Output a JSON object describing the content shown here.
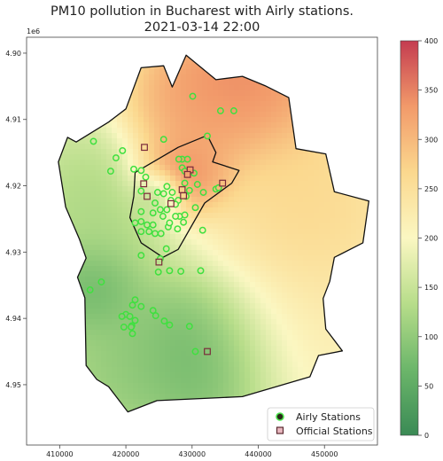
{
  "chart_data": {
    "type": "heatmap",
    "title_line1": "PM10 pollution in Bucharest with Airly stations.",
    "title_line2": "2021-03-14 22:00",
    "x_axis": {
      "range": [
        405000,
        458000
      ],
      "ticks": [
        410000,
        420000,
        430000,
        440000,
        450000
      ],
      "tick_labels": [
        "410000",
        "420000",
        "430000",
        "440000",
        "450000"
      ]
    },
    "y_axis": {
      "range": [
        4.8976,
        4.9591
      ],
      "scale_label": "1e6",
      "inverted": true,
      "ticks": [
        4.9,
        4.91,
        4.92,
        4.93,
        4.94,
        4.95
      ],
      "tick_labels": [
        "4.90",
        "4.91",
        "4.92",
        "4.93",
        "4.94",
        "4.95"
      ]
    },
    "colorbar": {
      "range": [
        0,
        400
      ],
      "ticks": [
        0,
        50,
        100,
        150,
        200,
        250,
        300,
        350,
        400
      ],
      "tick_labels": [
        "0",
        "50",
        "100",
        "150",
        "200",
        "250",
        "300",
        "350",
        "400"
      ],
      "colormap": "RdYlGn_r",
      "stops": [
        "#3a8a55",
        "#6cb66a",
        "#b7dd8a",
        "#fbf7c2",
        "#fbd88e",
        "#f29a6a",
        "#c43c50"
      ]
    },
    "legend": {
      "position": "lower-right",
      "items": [
        {
          "label": "Airly Stations",
          "marker": "circle",
          "color": "#2a2a1a"
        },
        {
          "label": "Official Stations",
          "marker": "square",
          "color": "#e8b8c0"
        }
      ]
    },
    "grid": false,
    "city_boundary": [
      [
        412500,
        4.9134
      ],
      [
        417400,
        4.9104
      ],
      [
        420000,
        4.9084
      ],
      [
        422300,
        4.9022
      ],
      [
        425700,
        4.9019
      ],
      [
        427000,
        4.9051
      ],
      [
        429100,
        4.9003
      ],
      [
        433600,
        4.904
      ],
      [
        437600,
        4.9035
      ],
      [
        441000,
        4.9049
      ],
      [
        444600,
        4.9067
      ],
      [
        445700,
        4.9144
      ],
      [
        450200,
        4.9152
      ],
      [
        451500,
        4.9209
      ],
      [
        456700,
        4.9223
      ],
      [
        455800,
        4.9286
      ],
      [
        451500,
        4.9308
      ],
      [
        450800,
        4.9344
      ],
      [
        449800,
        4.937
      ],
      [
        450200,
        4.9416
      ],
      [
        452700,
        4.9449
      ],
      [
        449100,
        4.9456
      ],
      [
        447800,
        4.9488
      ],
      [
        437600,
        4.9518
      ],
      [
        424700,
        4.9524
      ],
      [
        420300,
        4.9541
      ],
      [
        417400,
        4.9503
      ],
      [
        415600,
        4.9492
      ],
      [
        414000,
        4.9471
      ],
      [
        413800,
        4.9369
      ],
      [
        412700,
        4.9338
      ],
      [
        414000,
        4.9309
      ],
      [
        413000,
        4.9281
      ],
      [
        410900,
        4.9232
      ],
      [
        409800,
        4.9164
      ],
      [
        411200,
        4.9127
      ]
    ],
    "inner_ring": [
      [
        421400,
        4.918
      ],
      [
        427900,
        4.9142
      ],
      [
        432300,
        4.9124
      ],
      [
        433600,
        4.915
      ],
      [
        433100,
        4.9164
      ],
      [
        437100,
        4.9177
      ],
      [
        436000,
        4.9196
      ],
      [
        431900,
        4.9226
      ],
      [
        427900,
        4.9296
      ],
      [
        425600,
        4.9308
      ],
      [
        422300,
        4.9286
      ],
      [
        420600,
        4.9248
      ],
      [
        421200,
        4.9216
      ]
    ],
    "hotspots": [
      {
        "x": 428500,
        "y": 4.9185,
        "value": 400,
        "sigma_x": 4200,
        "sigma_y": 0.0035
      },
      {
        "x": 437000,
        "y": 4.905,
        "value": 400,
        "sigma_x": 9000,
        "sigma_y": 0.0065
      },
      {
        "x": 431000,
        "y": 4.91,
        "value": 330,
        "sigma_x": 5500,
        "sigma_y": 0.0045
      },
      {
        "x": 447000,
        "y": 4.923,
        "value": 290,
        "sigma_x": 9000,
        "sigma_y": 0.009
      },
      {
        "x": 445000,
        "y": 4.942,
        "value": 245,
        "sigma_x": 7000,
        "sigma_y": 0.008
      },
      {
        "x": 432500,
        "y": 4.9455,
        "value": 30,
        "sigma_x": 7500,
        "sigma_y": 0.007
      },
      {
        "x": 425000,
        "y": 4.9212,
        "value": 55,
        "sigma_x": 2200,
        "sigma_y": 0.002
      },
      {
        "x": 415000,
        "y": 4.9355,
        "value": 40,
        "sigma_x": 4000,
        "sigma_y": 0.004
      },
      {
        "x": 416000,
        "y": 4.924,
        "value": 110,
        "sigma_x": 6000,
        "sigma_y": 0.007
      },
      {
        "x": 420000,
        "y": 4.947,
        "value": 90,
        "sigma_x": 7000,
        "sigma_y": 0.006
      }
    ],
    "airly_stations": [
      [
        430100,
        4.9065
      ],
      [
        434300,
        4.9087
      ],
      [
        436300,
        4.9087
      ],
      [
        428500,
        4.9173
      ],
      [
        428900,
        4.9178
      ],
      [
        425700,
        4.9212
      ],
      [
        426800,
        4.9222
      ],
      [
        427900,
        4.9222
      ],
      [
        425200,
        4.9236
      ],
      [
        425600,
        4.9246
      ],
      [
        424400,
        4.9226
      ],
      [
        428100,
        4.9246
      ],
      [
        426400,
        4.9262
      ],
      [
        415100,
        4.9133
      ],
      [
        418500,
        4.9158
      ],
      [
        417700,
        4.9178
      ],
      [
        419500,
        4.9147
      ],
      [
        421200,
        4.9175
      ],
      [
        422300,
        4.9177
      ],
      [
        423000,
        4.9187
      ],
      [
        425700,
        4.913
      ],
      [
        428500,
        4.916
      ],
      [
        429300,
        4.916
      ],
      [
        432300,
        4.9125
      ],
      [
        428000,
        4.916
      ],
      [
        430300,
        4.9181
      ],
      [
        428900,
        4.9196
      ],
      [
        430800,
        4.9198
      ],
      [
        429600,
        4.9207
      ],
      [
        431700,
        4.921
      ],
      [
        433600,
        4.9205
      ],
      [
        434000,
        4.9203
      ],
      [
        424800,
        4.921
      ],
      [
        422300,
        4.9208
      ],
      [
        426200,
        4.9201
      ],
      [
        427000,
        4.921
      ],
      [
        429100,
        4.9216
      ],
      [
        427500,
        4.9228
      ],
      [
        426200,
        4.9236
      ],
      [
        430500,
        4.9233
      ],
      [
        427500,
        4.9246
      ],
      [
        428900,
        4.9244
      ],
      [
        422300,
        4.9239
      ],
      [
        424100,
        4.9241
      ],
      [
        421400,
        4.9256
      ],
      [
        422300,
        4.9254
      ],
      [
        423200,
        4.9259
      ],
      [
        424100,
        4.9259
      ],
      [
        426600,
        4.9256
      ],
      [
        428700,
        4.9255
      ],
      [
        427800,
        4.9265
      ],
      [
        431600,
        4.9267
      ],
      [
        422300,
        4.9269
      ],
      [
        423500,
        4.9269
      ],
      [
        424400,
        4.9272
      ],
      [
        425300,
        4.9272
      ],
      [
        426100,
        4.9295
      ],
      [
        425200,
        4.931
      ],
      [
        422300,
        4.9305
      ],
      [
        424900,
        4.933
      ],
      [
        426600,
        4.9328
      ],
      [
        428300,
        4.9329
      ],
      [
        431300,
        4.9328
      ],
      [
        414600,
        4.9357
      ],
      [
        416300,
        4.9345
      ],
      [
        421400,
        4.9372
      ],
      [
        421000,
        4.938
      ],
      [
        422300,
        4.9382
      ],
      [
        420000,
        4.9394
      ],
      [
        419400,
        4.9397
      ],
      [
        420600,
        4.9397
      ],
      [
        421400,
        4.9403
      ],
      [
        424100,
        4.9388
      ],
      [
        424500,
        4.9396
      ],
      [
        425800,
        4.9404
      ],
      [
        426600,
        4.941
      ],
      [
        429600,
        4.9412
      ],
      [
        420900,
        4.9411
      ],
      [
        421000,
        4.9423
      ],
      [
        430500,
        4.945
      ],
      [
        420800,
        4.9413
      ],
      [
        419700,
        4.9413
      ]
    ],
    "official_stations": [
      [
        422800,
        4.9142
      ],
      [
        429700,
        4.9176
      ],
      [
        434600,
        4.9196
      ],
      [
        422700,
        4.9197
      ],
      [
        428500,
        4.9206
      ],
      [
        428700,
        4.9215
      ],
      [
        423200,
        4.9216
      ],
      [
        426800,
        4.9227
      ],
      [
        432300,
        4.945
      ],
      [
        425000,
        4.9315
      ],
      [
        429300,
        4.9183
      ]
    ]
  }
}
